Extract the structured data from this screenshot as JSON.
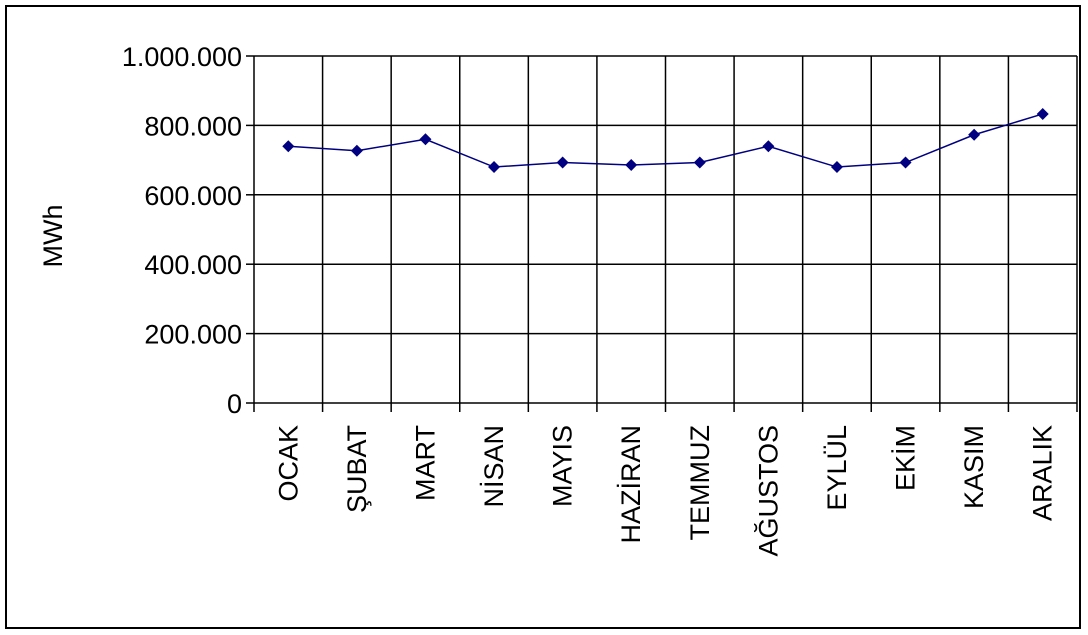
{
  "chart_data": {
    "type": "line",
    "title": "",
    "xlabel": "",
    "ylabel": "MWh",
    "categories": [
      "OCAK",
      "ŞUBAT",
      "MART",
      "NİSAN",
      "MAYIS",
      "HAZİRAN",
      "TEMMUZ",
      "AĞUSTOS",
      "EYLÜL",
      "EKİM",
      "KASIM",
      "ARALIK"
    ],
    "series": [
      {
        "values": [
          740000,
          727000,
          760000,
          680000,
          693000,
          686000,
          693000,
          740000,
          680000,
          693000,
          773000,
          833000
        ]
      }
    ],
    "ylim": [
      0,
      1000000
    ],
    "yticks": [
      0,
      200000,
      400000,
      600000,
      800000,
      1000000
    ],
    "ytick_labels": [
      "0",
      "200.000",
      "400.000",
      "600.000",
      "800.000",
      "1.000.000"
    ],
    "grid": true,
    "legend": "none",
    "series_color": "#000080"
  }
}
